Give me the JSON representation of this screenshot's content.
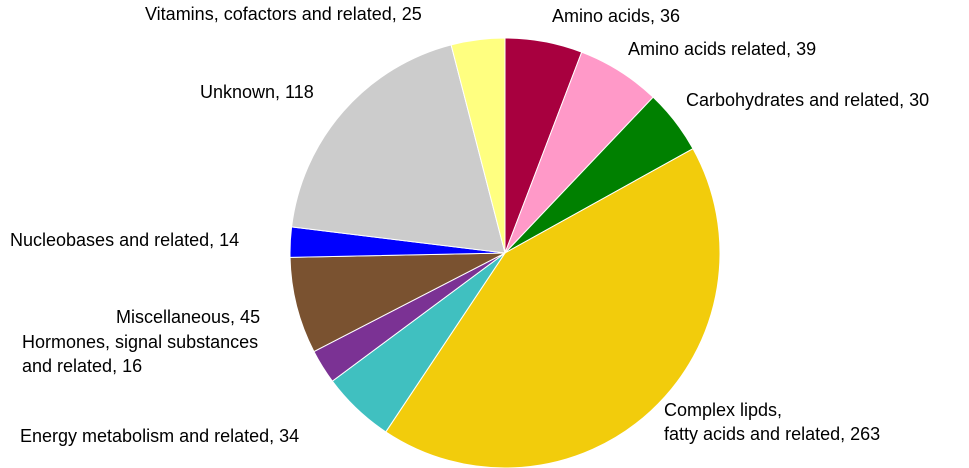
{
  "chart_data": {
    "type": "pie",
    "values": [
      36,
      39,
      30,
      263,
      34,
      16,
      45,
      14,
      118,
      25
    ],
    "value_labels": [
      "Amino acids, 36",
      "Amino acids related, 39",
      "Carbohydrates and related, 30",
      "Complex lipds,\nfatty acids and related, 263",
      "Energy metabolism and related, 34",
      "Hormones, signal substances\nand related, 16",
      "Miscellaneous, 45",
      "Nucleobases and related, 14",
      "Unknown, 118",
      "Vitamins, cofactors and related, 25"
    ],
    "colors": [
      "#a8003f",
      "#ff99c8",
      "#008000",
      "#f2cc0c",
      "#40c0c0",
      "#7b3294",
      "#7a5230",
      "#0000ff",
      "#cccccc",
      "#ffff80"
    ]
  }
}
